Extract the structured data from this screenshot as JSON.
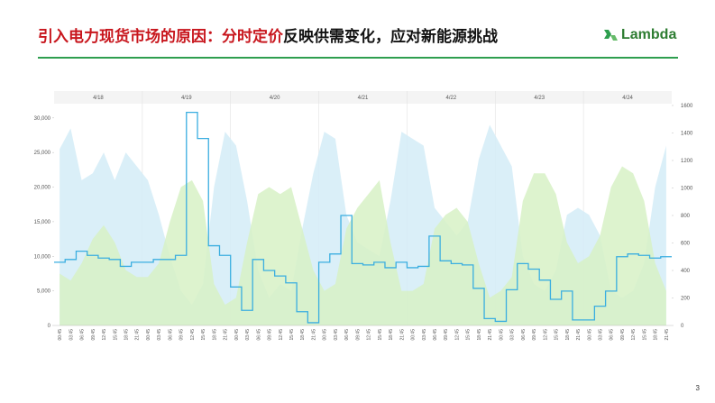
{
  "header": {
    "title_red": "引入电力现货市场的原因：分时定价",
    "title_black": "反映供需变化，应对新能源挑战",
    "logo": "Lambda"
  },
  "page_number": "3",
  "chart_data": {
    "type": "combo",
    "dates": [
      "4/18",
      "4/19",
      "4/20",
      "4/21",
      "4/22",
      "4/23",
      "4/24"
    ],
    "categories": [
      "00:45",
      "03:45",
      "06:45",
      "09:45",
      "12:45",
      "15:45",
      "18:45",
      "21:45",
      "00:45",
      "03:45",
      "06:45",
      "09:45",
      "12:45",
      "15:45",
      "18:45",
      "21:45",
      "00:45",
      "03:45",
      "06:45",
      "09:45",
      "12:45",
      "15:45",
      "18:45",
      "21:45",
      "00:45",
      "03:45",
      "06:45",
      "09:45",
      "12:45",
      "15:45",
      "18:45",
      "21:45",
      "00:45",
      "03:45",
      "06:45",
      "09:45",
      "12:45",
      "15:45",
      "18:45",
      "21:45",
      "00:45",
      "03:45",
      "06:45",
      "09:45",
      "12:45",
      "15:45",
      "18:45",
      "21:45",
      "00:45",
      "03:45",
      "06:45",
      "09:45",
      "12:45",
      "15:45",
      "18:45",
      "21:45"
    ],
    "series": [
      {
        "type": "area",
        "color": "#d4ecf7",
        "values": [
          25500,
          28500,
          21000,
          22000,
          25000,
          21000,
          25000,
          23000,
          21000,
          16000,
          10000,
          5000,
          3000,
          6000,
          20000,
          28000,
          26000,
          18000,
          8000,
          4000,
          6000,
          5000,
          14000,
          22000,
          28000,
          27000,
          16000,
          12000,
          11000,
          10000,
          18000,
          28000,
          27000,
          26000,
          17000,
          15000,
          13000,
          15000,
          24000,
          29000,
          26000,
          23000,
          10000,
          6000,
          5000,
          8000,
          16000,
          17000,
          16000,
          13000,
          5000,
          4000,
          5000,
          9000,
          20000,
          26000
        ]
      },
      {
        "type": "area",
        "color": "#d7f1c6",
        "values": [
          7500,
          6500,
          9000,
          12500,
          14500,
          12000,
          8000,
          7000,
          7000,
          9000,
          15000,
          20000,
          21000,
          18000,
          6000,
          3000,
          4000,
          12000,
          19000,
          20000,
          19000,
          20000,
          14000,
          8000,
          5000,
          6000,
          14000,
          17000,
          19000,
          21000,
          12000,
          5000,
          5000,
          6000,
          14000,
          16000,
          17000,
          15000,
          9000,
          4000,
          5000,
          7000,
          18000,
          22000,
          22000,
          19000,
          12000,
          9000,
          10000,
          13000,
          20000,
          23000,
          22000,
          18000,
          9000,
          5000
        ]
      },
      {
        "type": "step",
        "axis": "y2",
        "color": "#3aaee0",
        "values": [
          460,
          480,
          540,
          510,
          490,
          480,
          430,
          460,
          460,
          480,
          480,
          510,
          1550,
          1360,
          580,
          510,
          280,
          110,
          480,
          400,
          360,
          310,
          100,
          20,
          460,
          520,
          800,
          450,
          440,
          460,
          420,
          460,
          420,
          430,
          650,
          470,
          450,
          440,
          270,
          50,
          30,
          260,
          450,
          410,
          330,
          190,
          250,
          40,
          40,
          140,
          250,
          500,
          520,
          510,
          490,
          500
        ]
      }
    ],
    "ylim": [
      0,
      31800
    ],
    "yticks": [
      0,
      {
        "value": 5000,
        "label": "5,000"
      },
      {
        "value": 10000,
        "label": "10,000"
      },
      {
        "value": 15000,
        "label": "15,000"
      },
      {
        "value": 20000,
        "label": "20,000"
      },
      {
        "value": 25000,
        "label": "25,000"
      },
      {
        "value": 30000,
        "label": "30,000"
      }
    ],
    "y2lim": [
      0,
      1600
    ],
    "y2ticks": [
      0,
      200,
      400,
      600,
      800,
      1000,
      1200,
      1400,
      1600
    ]
  }
}
